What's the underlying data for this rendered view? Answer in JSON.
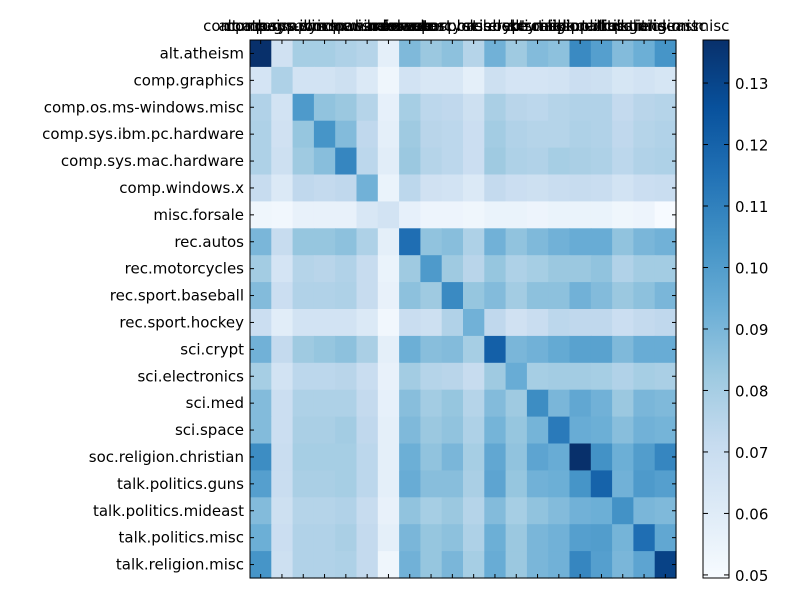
{
  "chart_data": {
    "type": "heatmap",
    "title": "",
    "xlabel": "",
    "ylabel": "",
    "categories": [
      "alt.atheism",
      "comp.graphics",
      "comp.os.ms-windows.misc",
      "comp.sys.ibm.pc.hardware",
      "comp.sys.mac.hardware",
      "comp.windows.x",
      "misc.forsale",
      "rec.autos",
      "rec.motorcycles",
      "rec.sport.baseball",
      "rec.sport.hockey",
      "sci.crypt",
      "sci.electronics",
      "sci.med",
      "sci.space",
      "soc.religion.christian",
      "talk.politics.guns",
      "talk.politics.mideast",
      "talk.politics.misc",
      "talk.religion.misc"
    ],
    "x_tick_labels": [
      "alt.atheism",
      "comp.graphics",
      "comp.os.ms-windows.misc",
      "comp.sys.ibm.pc.hardware",
      "comp.sys.mac.hardware",
      "comp.windows.x",
      "misc.forsale",
      "rec.autos",
      "rec.motorcycles",
      "rec.sport.baseball",
      "rec.sport.hockey",
      "sci.crypt",
      "sci.electronics",
      "sci.med",
      "sci.space",
      "soc.religion.christian",
      "talk.politics.guns",
      "talk.politics.mideast",
      "talk.politics.misc",
      "talk.religion.misc"
    ],
    "values": [
      [
        0.137,
        0.067,
        0.08,
        0.08,
        0.078,
        0.076,
        0.058,
        0.089,
        0.083,
        0.086,
        0.076,
        0.092,
        0.082,
        0.088,
        0.086,
        0.107,
        0.099,
        0.088,
        0.093,
        0.103
      ],
      [
        0.065,
        0.078,
        0.066,
        0.066,
        0.068,
        0.062,
        0.053,
        0.066,
        0.063,
        0.063,
        0.058,
        0.068,
        0.065,
        0.065,
        0.066,
        0.069,
        0.068,
        0.064,
        0.066,
        0.064
      ],
      [
        0.077,
        0.066,
        0.101,
        0.085,
        0.083,
        0.076,
        0.057,
        0.08,
        0.074,
        0.073,
        0.068,
        0.079,
        0.075,
        0.074,
        0.076,
        0.077,
        0.077,
        0.072,
        0.075,
        0.076
      ],
      [
        0.078,
        0.067,
        0.084,
        0.103,
        0.088,
        0.073,
        0.058,
        0.082,
        0.075,
        0.074,
        0.069,
        0.081,
        0.077,
        0.076,
        0.076,
        0.078,
        0.077,
        0.073,
        0.076,
        0.077
      ],
      [
        0.078,
        0.068,
        0.082,
        0.087,
        0.108,
        0.074,
        0.059,
        0.083,
        0.076,
        0.074,
        0.069,
        0.082,
        0.078,
        0.077,
        0.08,
        0.079,
        0.078,
        0.074,
        0.077,
        0.078
      ],
      [
        0.071,
        0.062,
        0.073,
        0.072,
        0.073,
        0.092,
        0.055,
        0.074,
        0.067,
        0.066,
        0.062,
        0.072,
        0.069,
        0.068,
        0.07,
        0.071,
        0.07,
        0.066,
        0.069,
        0.07
      ],
      [
        0.053,
        0.052,
        0.056,
        0.056,
        0.056,
        0.063,
        0.066,
        0.057,
        0.054,
        0.054,
        0.053,
        0.055,
        0.055,
        0.054,
        0.055,
        0.055,
        0.055,
        0.053,
        0.054,
        0.05
      ],
      [
        0.09,
        0.071,
        0.084,
        0.084,
        0.086,
        0.078,
        0.058,
        0.116,
        0.085,
        0.087,
        0.078,
        0.092,
        0.085,
        0.089,
        0.092,
        0.094,
        0.094,
        0.085,
        0.09,
        0.092
      ],
      [
        0.081,
        0.065,
        0.076,
        0.075,
        0.077,
        0.071,
        0.055,
        0.082,
        0.101,
        0.082,
        0.075,
        0.084,
        0.078,
        0.08,
        0.083,
        0.083,
        0.085,
        0.077,
        0.081,
        0.081
      ],
      [
        0.088,
        0.069,
        0.077,
        0.077,
        0.078,
        0.071,
        0.056,
        0.086,
        0.082,
        0.107,
        0.084,
        0.088,
        0.081,
        0.086,
        0.086,
        0.092,
        0.088,
        0.083,
        0.086,
        0.09
      ],
      [
        0.069,
        0.059,
        0.066,
        0.066,
        0.066,
        0.062,
        0.052,
        0.07,
        0.068,
        0.077,
        0.092,
        0.073,
        0.067,
        0.07,
        0.074,
        0.073,
        0.073,
        0.069,
        0.072,
        0.073
      ],
      [
        0.092,
        0.072,
        0.082,
        0.084,
        0.086,
        0.079,
        0.058,
        0.093,
        0.087,
        0.088,
        0.08,
        0.121,
        0.09,
        0.092,
        0.095,
        0.098,
        0.098,
        0.089,
        0.094,
        0.094
      ],
      [
        0.08,
        0.066,
        0.074,
        0.074,
        0.075,
        0.07,
        0.056,
        0.081,
        0.076,
        0.075,
        0.071,
        0.082,
        0.094,
        0.08,
        0.081,
        0.081,
        0.08,
        0.077,
        0.08,
        0.079
      ],
      [
        0.088,
        0.069,
        0.078,
        0.078,
        0.078,
        0.072,
        0.057,
        0.087,
        0.081,
        0.084,
        0.076,
        0.088,
        0.082,
        0.106,
        0.09,
        0.096,
        0.092,
        0.083,
        0.09,
        0.089
      ],
      [
        0.088,
        0.069,
        0.079,
        0.079,
        0.081,
        0.073,
        0.058,
        0.089,
        0.083,
        0.085,
        0.078,
        0.091,
        0.084,
        0.091,
        0.112,
        0.094,
        0.093,
        0.087,
        0.092,
        0.091
      ],
      [
        0.106,
        0.07,
        0.08,
        0.08,
        0.08,
        0.074,
        0.058,
        0.093,
        0.085,
        0.09,
        0.08,
        0.096,
        0.085,
        0.097,
        0.094,
        0.137,
        0.104,
        0.093,
        0.1,
        0.108
      ],
      [
        0.099,
        0.07,
        0.079,
        0.079,
        0.08,
        0.074,
        0.058,
        0.094,
        0.087,
        0.087,
        0.079,
        0.097,
        0.084,
        0.092,
        0.093,
        0.103,
        0.12,
        0.092,
        0.101,
        0.099
      ],
      [
        0.088,
        0.068,
        0.076,
        0.076,
        0.077,
        0.071,
        0.056,
        0.085,
        0.08,
        0.083,
        0.076,
        0.088,
        0.08,
        0.085,
        0.088,
        0.092,
        0.093,
        0.104,
        0.09,
        0.089
      ],
      [
        0.093,
        0.069,
        0.077,
        0.077,
        0.079,
        0.072,
        0.058,
        0.09,
        0.084,
        0.086,
        0.078,
        0.093,
        0.083,
        0.09,
        0.092,
        0.099,
        0.1,
        0.091,
        0.116,
        0.096
      ],
      [
        0.103,
        0.068,
        0.077,
        0.077,
        0.078,
        0.072,
        0.053,
        0.092,
        0.084,
        0.09,
        0.08,
        0.094,
        0.083,
        0.09,
        0.092,
        0.108,
        0.099,
        0.09,
        0.097,
        0.131
      ]
    ],
    "zlim": [
      0.0495,
      0.137
    ],
    "colorbar": {
      "ticks": [
        0.05,
        0.06,
        0.07,
        0.08,
        0.09,
        0.1,
        0.11,
        0.12,
        0.13
      ],
      "tick_labels": [
        "0.05",
        "0.06",
        "0.07",
        "0.08",
        "0.09",
        "0.10",
        "0.11",
        "0.12",
        "0.13"
      ]
    },
    "colormap": "Blues",
    "colormap_stops": [
      "#f7fbff",
      "#deebf7",
      "#c6dbef",
      "#9ecae1",
      "#6baed6",
      "#4292c6",
      "#2171b5",
      "#08519c",
      "#08306b"
    ],
    "grid": false,
    "legend": "colorbar-right",
    "x_tick_position": "top"
  }
}
